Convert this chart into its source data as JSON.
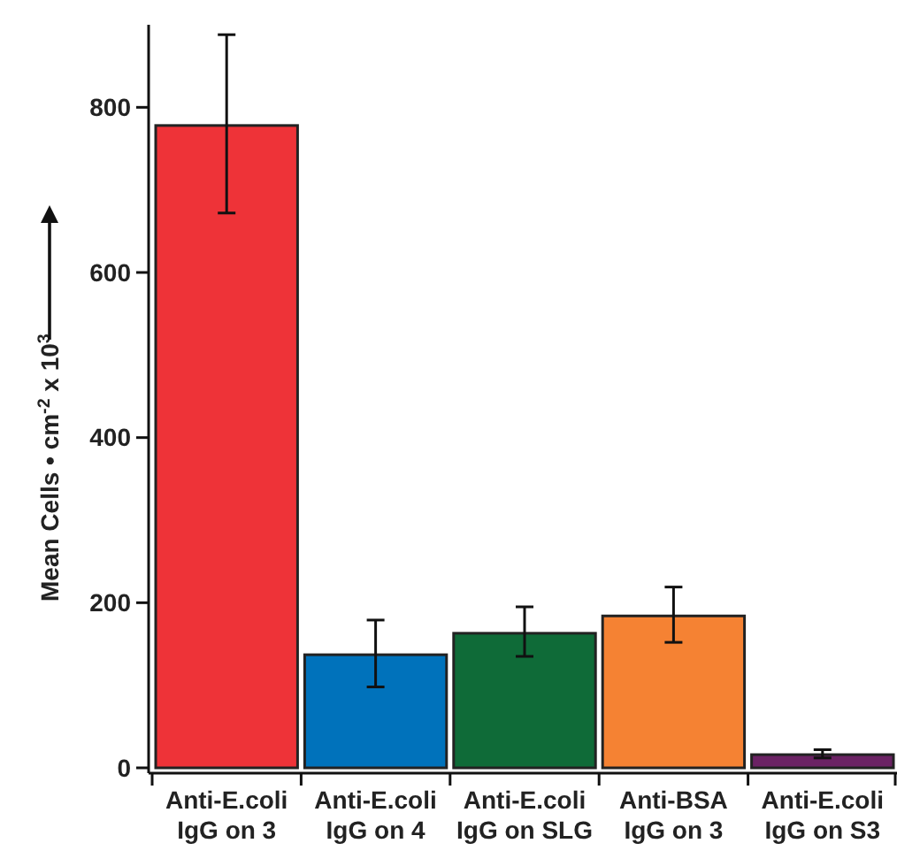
{
  "chart_data": {
    "type": "bar",
    "ylabel": "Mean Cells • cm$^{-2}$ x 10$^{3}$",
    "categories": [
      "Anti-E.coli IgG on 3",
      "Anti-E.coli IgG on 4",
      "Anti-E.coli IgG on SLG",
      "Anti-BSA IgG on 3",
      "Anti-E.coli IgG on S3"
    ],
    "values": [
      778,
      137,
      163,
      184,
      16
    ],
    "colors": [
      "#ee3338",
      "#0072bb",
      "#0f6b38",
      "#f58233",
      "#6b2264"
    ],
    "errors": [
      [
        672,
        888
      ],
      [
        98,
        179
      ],
      [
        135,
        195
      ],
      [
        152,
        219
      ],
      [
        12,
        22
      ]
    ],
    "ylim": [
      0,
      900
    ],
    "yticks": [
      0,
      200,
      400,
      600,
      800
    ],
    "grid": false
  }
}
